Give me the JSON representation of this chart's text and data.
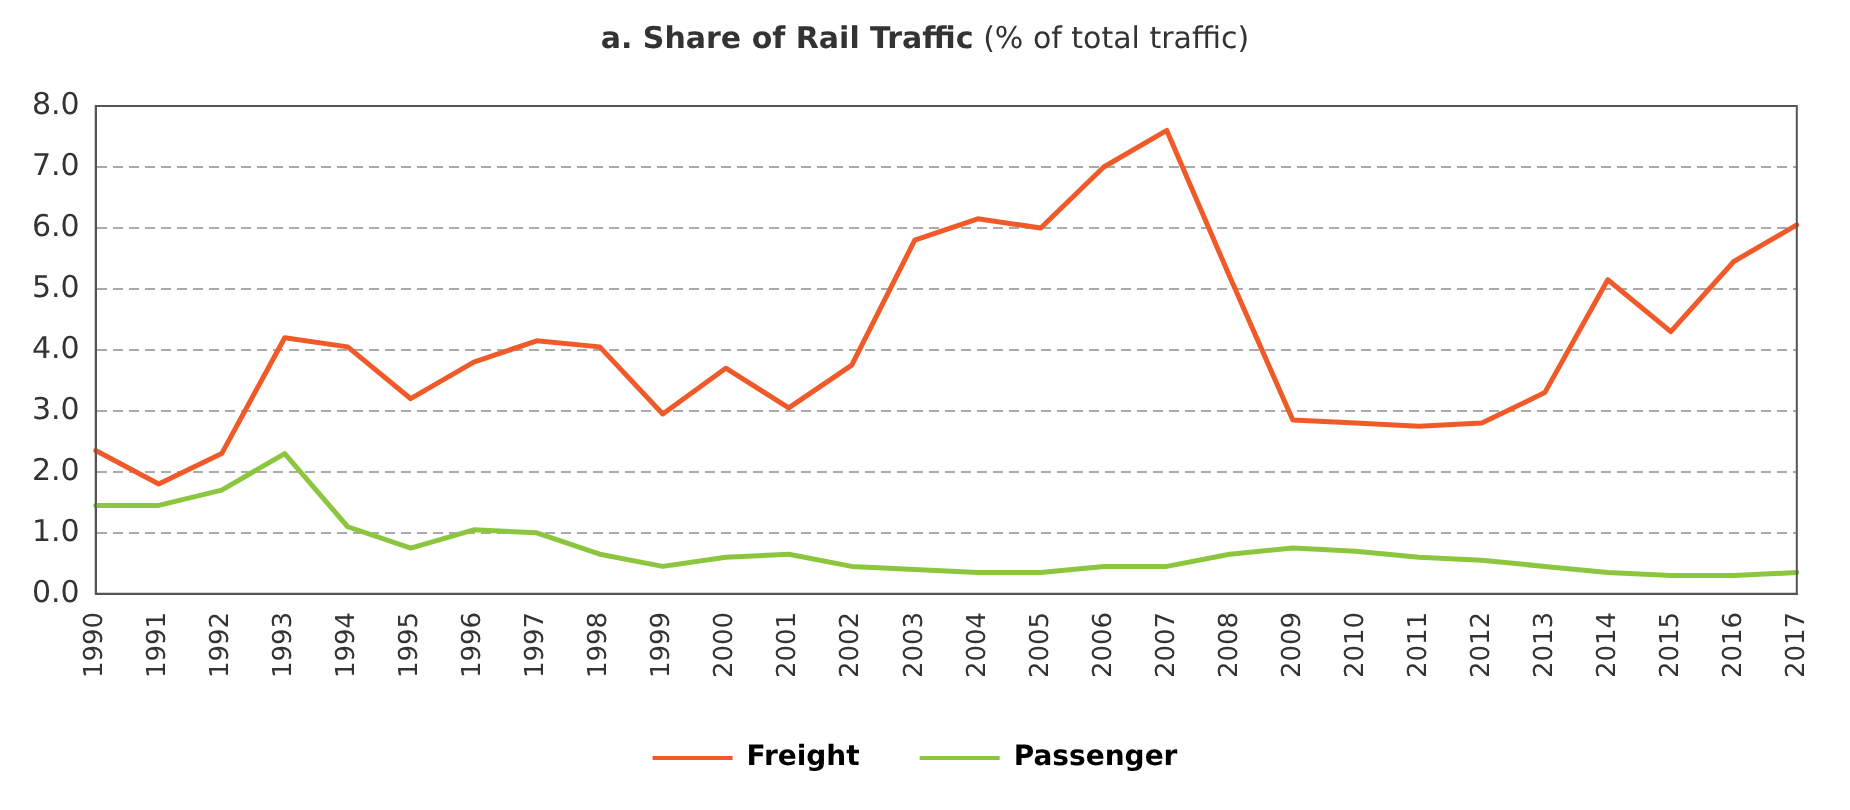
{
  "chart_data": {
    "type": "line",
    "title": "a. Share of Rail Traffic",
    "subtitle": "(% of total traffic)",
    "categories": [
      "1990",
      "1991",
      "1992",
      "1993",
      "1994",
      "1995",
      "1996",
      "1997",
      "1998",
      "1999",
      "2000",
      "2001",
      "2002",
      "2003",
      "2004",
      "2005",
      "2006",
      "2007",
      "2008",
      "2009",
      "2010",
      "2011",
      "2012",
      "2013",
      "2014",
      "2015",
      "2016",
      "2017"
    ],
    "series": [
      {
        "name": "Freight",
        "color": "#f05a28",
        "values": [
          2.35,
          1.8,
          2.3,
          4.2,
          4.05,
          3.2,
          3.8,
          4.15,
          4.05,
          2.95,
          3.7,
          3.05,
          3.75,
          5.8,
          6.15,
          6.0,
          7.0,
          7.6,
          5.2,
          2.85,
          2.8,
          2.75,
          2.8,
          3.3,
          5.15,
          4.3,
          5.45,
          6.05
        ]
      },
      {
        "name": "Passenger",
        "color": "#8cc63f",
        "values": [
          1.45,
          1.45,
          1.7,
          2.3,
          1.1,
          0.75,
          1.05,
          1.0,
          0.65,
          0.45,
          0.6,
          0.65,
          0.45,
          0.4,
          0.35,
          0.35,
          0.45,
          0.45,
          0.65,
          0.75,
          0.7,
          0.6,
          0.55,
          0.45,
          0.35,
          0.3,
          0.3,
          0.35
        ]
      }
    ],
    "ylim": [
      0,
      8
    ],
    "yticks": [
      {
        "value": 0,
        "label": "0.0"
      },
      {
        "value": 1,
        "label": "1.0"
      },
      {
        "value": 2,
        "label": "2.0"
      },
      {
        "value": 3,
        "label": "3.0"
      },
      {
        "value": 4,
        "label": "4.0"
      },
      {
        "value": 5,
        "label": "5.0"
      },
      {
        "value": 6,
        "label": "6.0"
      },
      {
        "value": 7,
        "label": "7.0"
      },
      {
        "value": 8,
        "label": "8.0"
      }
    ],
    "grid": "y",
    "legend": "bottom",
    "marker": "none",
    "line_style": "solid"
  }
}
